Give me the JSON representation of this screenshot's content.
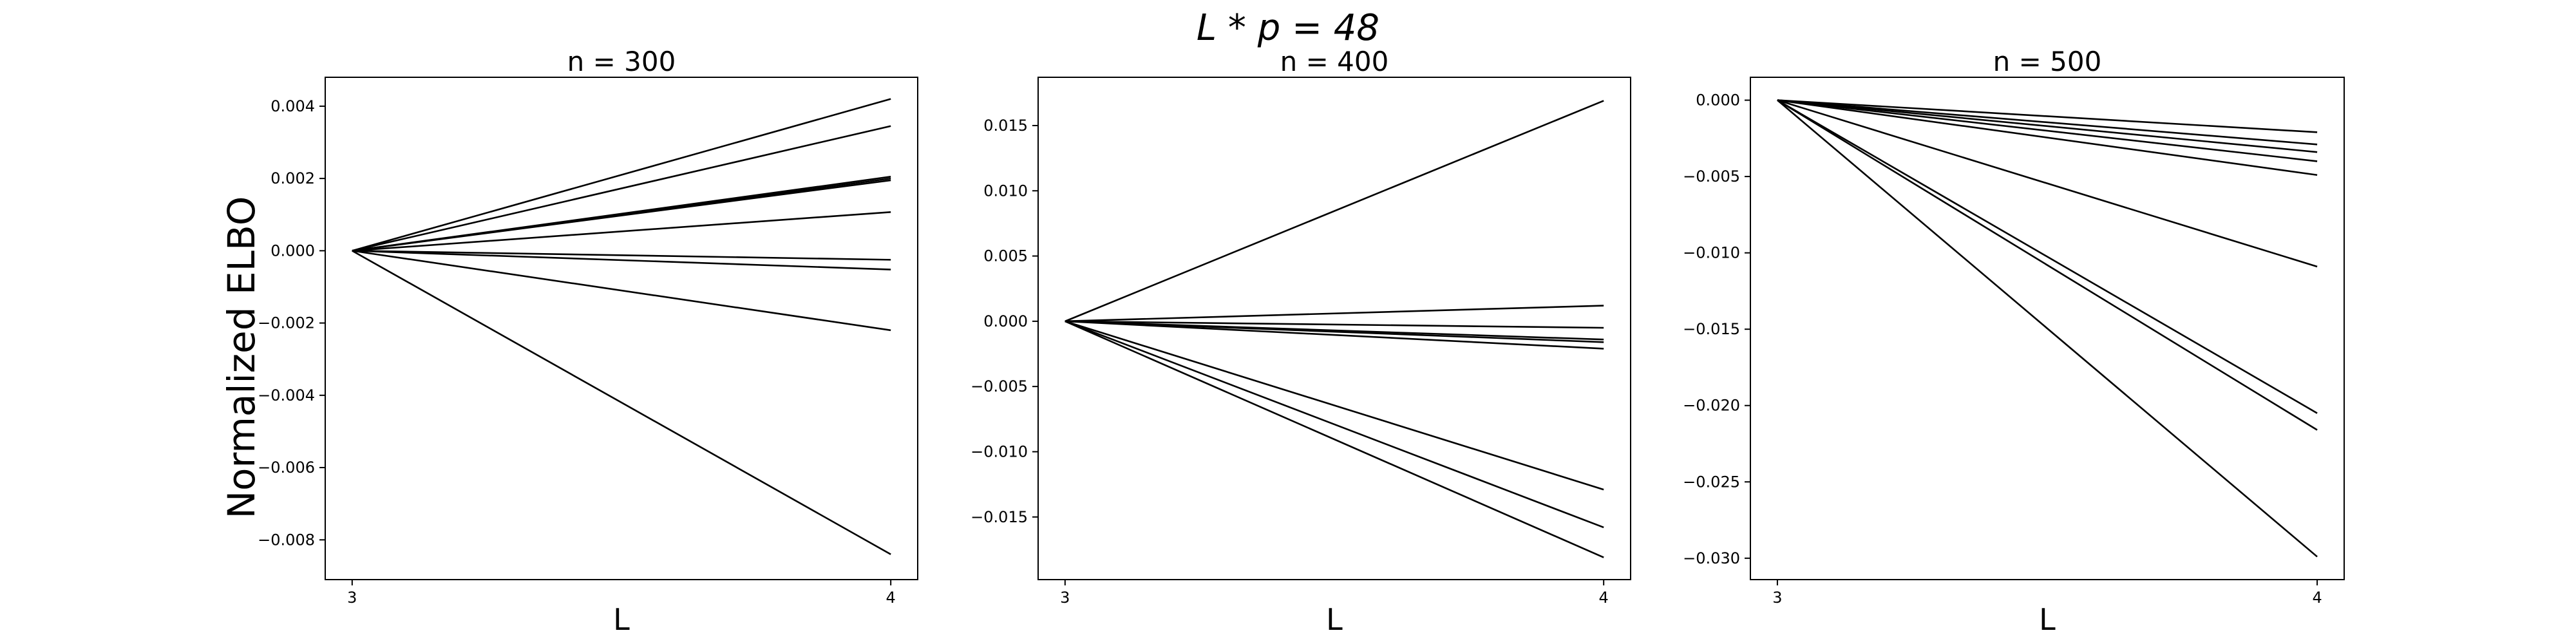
{
  "figure": {
    "suptitle": "L * p = 48",
    "ylabel": "Normalized ELBO"
  },
  "chart_data": [
    {
      "type": "line",
      "title": "n = 300",
      "xlabel": "L",
      "ylabel": "Normalized ELBO",
      "x": [
        3,
        4
      ],
      "xticks": [
        3,
        4
      ],
      "xlim": [
        2.95,
        4.05
      ],
      "ylim": [
        -0.0091,
        0.0048
      ],
      "yticks": [
        -0.008,
        -0.006,
        -0.004,
        -0.002,
        0.0,
        0.002,
        0.004
      ],
      "ytick_labels": [
        "−0.008",
        "−0.006",
        "−0.004",
        "−0.002",
        "0.000",
        "0.002",
        "0.004"
      ],
      "grid": false,
      "series": [
        {
          "values": [
            0,
            0.0042
          ]
        },
        {
          "values": [
            0,
            0.00345
          ]
        },
        {
          "values": [
            0,
            0.00205
          ]
        },
        {
          "values": [
            0,
            0.002
          ]
        },
        {
          "values": [
            0,
            0.00195
          ]
        },
        {
          "values": [
            0,
            0.00107
          ]
        },
        {
          "values": [
            0,
            -0.00025
          ]
        },
        {
          "values": [
            0,
            -0.00052
          ]
        },
        {
          "values": [
            0,
            -0.0022
          ]
        },
        {
          "values": [
            0,
            -0.0084
          ]
        }
      ]
    },
    {
      "type": "line",
      "title": "n = 400",
      "xlabel": "L",
      "ylabel": "",
      "x": [
        3,
        4
      ],
      "xticks": [
        3,
        4
      ],
      "xlim": [
        2.95,
        4.05
      ],
      "ylim": [
        -0.0198,
        0.0187
      ],
      "yticks": [
        -0.015,
        -0.01,
        -0.005,
        0.0,
        0.005,
        0.01,
        0.015
      ],
      "ytick_labels": [
        "−0.015",
        "−0.010",
        "−0.005",
        "0.000",
        "0.005",
        "0.010",
        "0.015"
      ],
      "grid": false,
      "series": [
        {
          "values": [
            0,
            0.0169
          ]
        },
        {
          "values": [
            0,
            0.0012
          ]
        },
        {
          "values": [
            0,
            -0.0005
          ]
        },
        {
          "values": [
            0,
            -0.0014
          ]
        },
        {
          "values": [
            0,
            -0.0016
          ]
        },
        {
          "values": [
            0,
            -0.0021
          ]
        },
        {
          "values": [
            0,
            -0.0129
          ]
        },
        {
          "values": [
            0,
            -0.0158
          ]
        },
        {
          "values": [
            0,
            -0.0181
          ]
        }
      ]
    },
    {
      "type": "line",
      "title": "n = 500",
      "xlabel": "L",
      "ylabel": "",
      "x": [
        3,
        4
      ],
      "xticks": [
        3,
        4
      ],
      "xlim": [
        2.95,
        4.05
      ],
      "ylim": [
        -0.0314,
        0.0015
      ],
      "yticks": [
        -0.03,
        -0.025,
        -0.02,
        -0.015,
        -0.01,
        -0.005,
        0.0
      ],
      "ytick_labels": [
        "−0.030",
        "−0.025",
        "−0.020",
        "−0.015",
        "−0.010",
        "−0.005",
        "0.000"
      ],
      "grid": false,
      "series": [
        {
          "values": [
            0,
            -0.0021
          ]
        },
        {
          "values": [
            0,
            -0.0029
          ]
        },
        {
          "values": [
            0,
            -0.0034
          ]
        },
        {
          "values": [
            0,
            -0.004
          ]
        },
        {
          "values": [
            0,
            -0.0049
          ]
        },
        {
          "values": [
            0,
            -0.0109
          ]
        },
        {
          "values": [
            0,
            -0.0205
          ]
        },
        {
          "values": [
            0,
            -0.0216
          ]
        },
        {
          "values": [
            0,
            -0.0299
          ]
        }
      ]
    }
  ]
}
